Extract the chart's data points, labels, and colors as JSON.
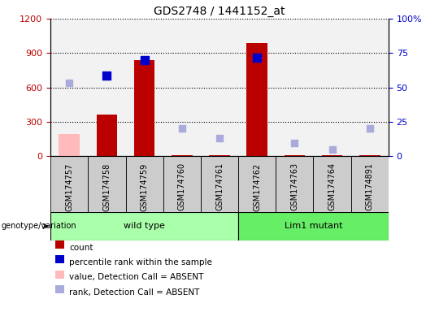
{
  "title": "GDS2748 / 1441152_at",
  "samples": [
    "GSM174757",
    "GSM174758",
    "GSM174759",
    "GSM174760",
    "GSM174761",
    "GSM174762",
    "GSM174763",
    "GSM174764",
    "GSM174891"
  ],
  "count": [
    null,
    360,
    840,
    10,
    10,
    990,
    10,
    10,
    10
  ],
  "count_absent": [
    190,
    null,
    null,
    null,
    null,
    null,
    null,
    null,
    null
  ],
  "percentile_rank_right": [
    null,
    58.3,
    70.0,
    null,
    null,
    71.7,
    null,
    null,
    null
  ],
  "rank_absent_right": [
    53.3,
    null,
    null,
    20.0,
    13.3,
    null,
    9.2,
    5.0,
    20.0
  ],
  "wild_type_indices": [
    0,
    1,
    2,
    3,
    4
  ],
  "lim1_mutant_indices": [
    5,
    6,
    7,
    8
  ],
  "ylim_left": [
    0,
    1200
  ],
  "ylim_right": [
    0,
    100
  ],
  "yticks_left": [
    0,
    300,
    600,
    900,
    1200
  ],
  "yticks_right": [
    0,
    25,
    50,
    75,
    100
  ],
  "ytick_labels_right": [
    "0",
    "25",
    "50",
    "75",
    "100%"
  ],
  "bar_width": 0.55,
  "colors": {
    "count_present": "#BB0000",
    "count_absent": "#FFBBBB",
    "percentile_present": "#0000CC",
    "percentile_absent": "#AAAADD",
    "wild_type_bg": "#AAFFAA",
    "lim1_bg": "#66EE66",
    "sample_bg": "#CCCCCC",
    "plot_bg": "#FFFFFF"
  },
  "legend": [
    {
      "label": "count",
      "color": "#BB0000"
    },
    {
      "label": "percentile rank within the sample",
      "color": "#0000CC"
    },
    {
      "label": "value, Detection Call = ABSENT",
      "color": "#FFBBBB"
    },
    {
      "label": "rank, Detection Call = ABSENT",
      "color": "#AAAADD"
    }
  ]
}
